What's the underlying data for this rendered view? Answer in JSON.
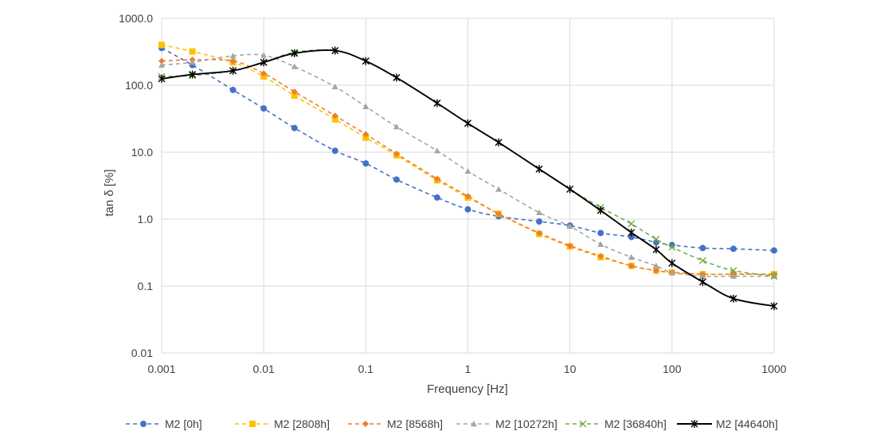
{
  "chart_data": {
    "type": "line",
    "title": "",
    "xlabel": "Frequency [Hz]",
    "ylabel": "tan δ [%]",
    "xscale": "log",
    "yscale": "log",
    "xlim": [
      0.001,
      1000
    ],
    "ylim": [
      0.01,
      1000
    ],
    "x_tick_labels": [
      "0.001",
      "0.01",
      "0.1",
      "1",
      "10",
      "100",
      "1000"
    ],
    "y_tick_labels": [
      "0.01",
      "0.1",
      "1.0",
      "10.0",
      "100.0",
      "1000.0"
    ],
    "grid": true,
    "legend_position": "bottom",
    "x": [
      0.001,
      0.002,
      0.005,
      0.01,
      0.02,
      0.05,
      0.1,
      0.2,
      0.5,
      1,
      2,
      5,
      10,
      20,
      40,
      70,
      100,
      200,
      400,
      1000
    ],
    "series": [
      {
        "name": "M2 [0h]",
        "color": "#4472C4",
        "dashed": true,
        "marker": "circle",
        "values": [
          360,
          200,
          85,
          45,
          23,
          10.5,
          6.8,
          3.9,
          2.1,
          1.4,
          1.1,
          0.92,
          0.8,
          0.62,
          0.54,
          0.45,
          0.41,
          0.37,
          0.36,
          0.34
        ]
      },
      {
        "name": "M2 [2808h]",
        "color": "#FFC000",
        "dashed": true,
        "marker": "square",
        "values": [
          400,
          320,
          220,
          135,
          70,
          31,
          16.5,
          9,
          3.8,
          2.1,
          1.2,
          0.6,
          0.39,
          0.27,
          0.2,
          0.17,
          0.16,
          0.15,
          0.15,
          0.15
        ]
      },
      {
        "name": "M2 [8568h]",
        "color": "#ED7D31",
        "dashed": true,
        "marker": "diamond",
        "values": [
          230,
          240,
          230,
          150,
          80,
          35,
          18.5,
          9.5,
          4.0,
          2.2,
          1.2,
          0.62,
          0.4,
          0.28,
          0.2,
          0.17,
          0.16,
          0.15,
          0.15,
          0.15
        ]
      },
      {
        "name": "M2 [10272h]",
        "color": "#A5A5A5",
        "dashed": true,
        "marker": "triangle",
        "values": [
          200,
          220,
          275,
          280,
          190,
          95,
          48,
          24,
          10.5,
          5.2,
          2.8,
          1.25,
          0.78,
          0.42,
          0.27,
          0.2,
          0.16,
          0.14,
          0.14,
          0.14
        ]
      },
      {
        "name": "M2 [36840h]",
        "color": "#70AD47",
        "dashed": true,
        "marker": "x",
        "values": [
          135,
          140,
          165,
          220,
          310,
          330,
          230,
          130,
          54,
          27,
          14,
          5.6,
          2.8,
          1.5,
          0.85,
          0.5,
          0.38,
          0.24,
          0.17,
          0.14
        ]
      },
      {
        "name": "M2 [44640h]",
        "color": "#000000",
        "dashed": false,
        "marker": "star",
        "values": [
          125,
          145,
          165,
          220,
          300,
          330,
          230,
          130,
          54,
          27,
          14,
          5.6,
          2.8,
          1.35,
          0.63,
          0.35,
          0.22,
          0.115,
          0.065,
          0.05
        ]
      }
    ]
  }
}
